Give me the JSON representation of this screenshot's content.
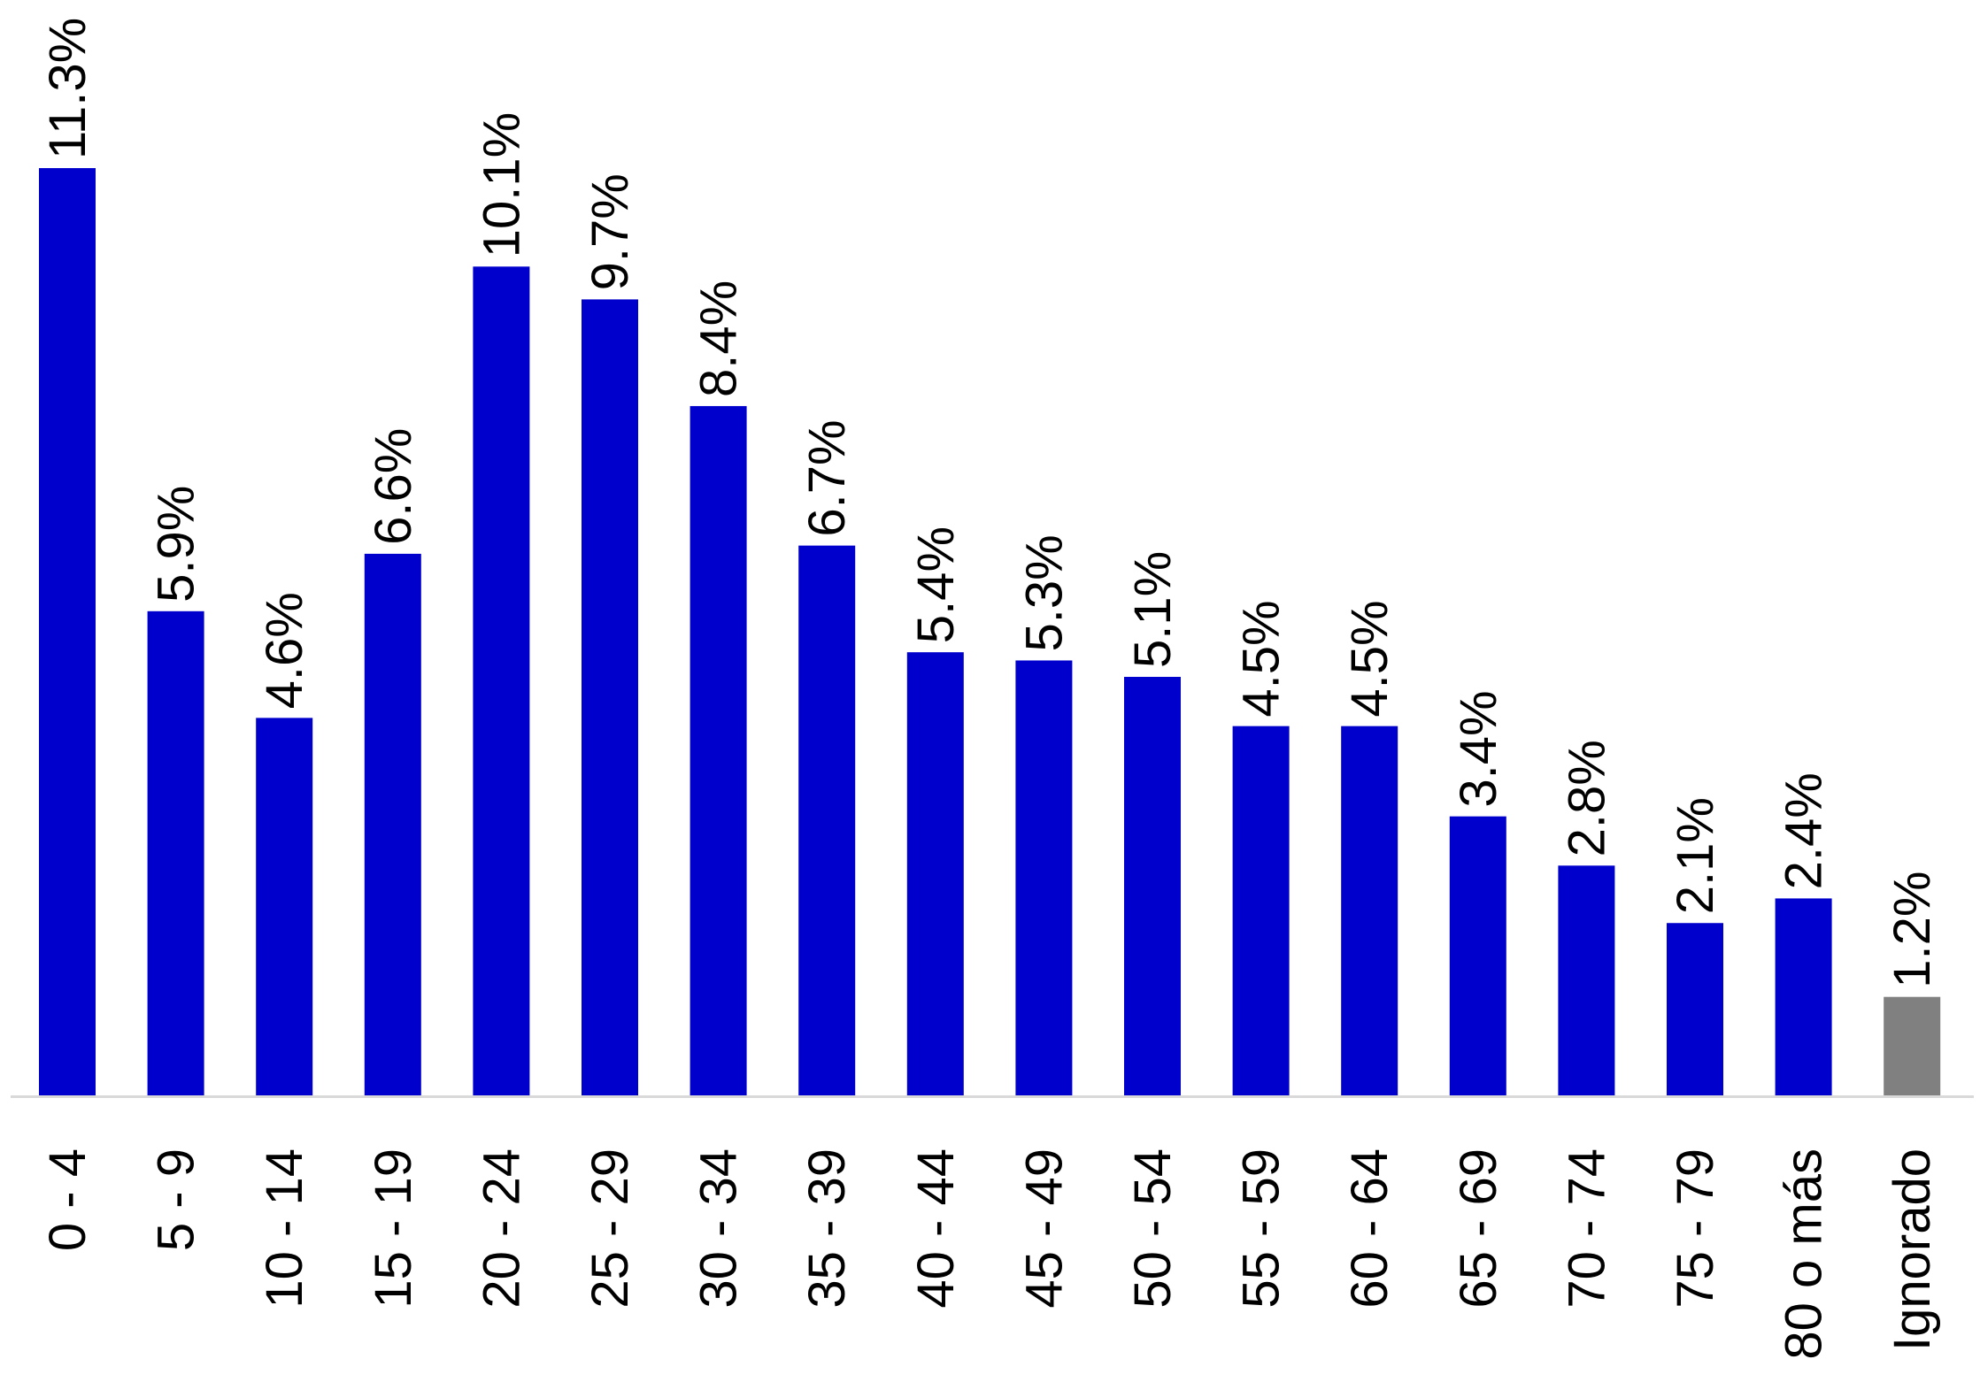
{
  "chart_data": {
    "type": "bar",
    "title": "",
    "xlabel": "",
    "ylabel": "",
    "ylim": [
      0,
      12.25
    ],
    "grid": false,
    "legend": "none",
    "categories": [
      "0 - 4",
      "5 - 9",
      "10 - 14",
      "15 - 19",
      "20 - 24",
      "25 - 29",
      "30 - 34",
      "35 - 39",
      "40 - 44",
      "45 - 49",
      "50 - 54",
      "55 - 59",
      "60 - 64",
      "65 - 69",
      "70 - 74",
      "75 - 79",
      "80 o más",
      "Ignorado"
    ],
    "values": [
      11.3,
      5.9,
      4.6,
      6.6,
      10.1,
      9.7,
      8.4,
      6.7,
      5.4,
      5.3,
      5.1,
      4.5,
      4.5,
      3.4,
      2.8,
      2.1,
      2.4,
      1.2
    ],
    "data_labels": [
      "11.3%",
      "5.9%",
      "4.6%",
      "6.6%",
      "10.1%",
      "9.7%",
      "8.4%",
      "6.7%",
      "5.4%",
      "5.3%",
      "5.1%",
      "4.5%",
      "4.5%",
      "3.4%",
      "2.8%",
      "2.1%",
      "2.4%",
      "1.2%"
    ],
    "unit": "%",
    "colors": {
      "default": "#0000CC",
      "ignorado": "#808080",
      "axis": "#D9D9D9"
    }
  }
}
